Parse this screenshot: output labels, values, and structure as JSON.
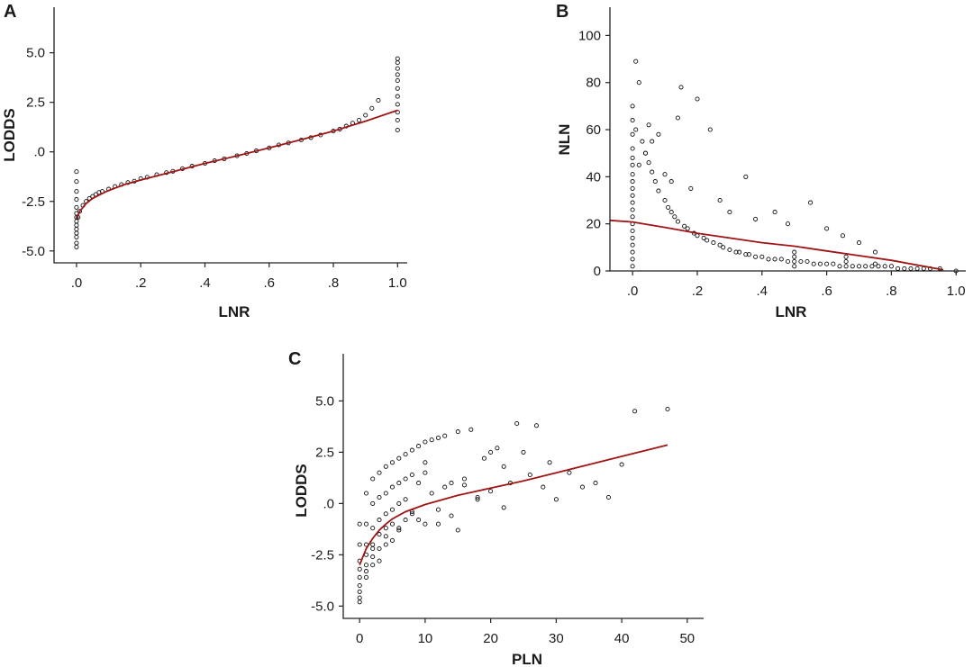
{
  "figure": {
    "line_color": "#a01414",
    "point_color": "#111111",
    "point_style": "open-circle"
  },
  "chart_data": [
    {
      "panel": "A",
      "type": "scatter",
      "title": "",
      "xlabel": "LNR",
      "ylabel": "LODDS",
      "xlim": [
        -0.07,
        1.03
      ],
      "ylim": [
        -5.6,
        7.3
      ],
      "xticks": [
        0,
        0.2,
        0.4,
        0.6,
        0.8,
        1.0
      ],
      "xtick_labels": [
        ".0",
        ".2",
        ".4",
        ".6",
        ".8",
        "1.0"
      ],
      "yticks": [
        -5,
        -2.5,
        0,
        2.5,
        5
      ],
      "ytick_labels": [
        "-5.0",
        "-2.5",
        ".0",
        "2.5",
        "5.0"
      ],
      "grid": false,
      "fit_line": {
        "type": "loess",
        "x": [
          0.0,
          0.01,
          0.03,
          0.05,
          0.08,
          0.1,
          0.15,
          0.2,
          0.3,
          0.4,
          0.5,
          0.6,
          0.7,
          0.8,
          0.9,
          1.0
        ],
        "y": [
          -3.35,
          -3.0,
          -2.6,
          -2.35,
          -2.1,
          -1.95,
          -1.65,
          -1.42,
          -1.0,
          -0.58,
          -0.2,
          0.2,
          0.62,
          1.05,
          1.55,
          2.1
        ]
      },
      "points": {
        "x": [
          0.0,
          0.0,
          0.0,
          0.0,
          0.0,
          0.0,
          0.0,
          0.0,
          0.0,
          0.0,
          0.0,
          0.0,
          0.0,
          0.0,
          0.005,
          0.01,
          0.02,
          0.03,
          0.04,
          0.05,
          0.06,
          0.07,
          0.08,
          0.1,
          0.12,
          0.14,
          0.16,
          0.18,
          0.2,
          0.22,
          0.25,
          0.28,
          0.3,
          0.33,
          0.36,
          0.4,
          0.43,
          0.46,
          0.5,
          0.53,
          0.56,
          0.6,
          0.63,
          0.66,
          0.7,
          0.73,
          0.76,
          0.8,
          0.82,
          0.84,
          0.86,
          0.88,
          0.9,
          0.92,
          0.94,
          1.0,
          1.0,
          1.0,
          1.0,
          1.0,
          1.0,
          1.0,
          1.0,
          1.0,
          1.0,
          1.0
        ],
        "y": [
          -1.0,
          -1.5,
          -2.0,
          -2.4,
          -2.8,
          -3.1,
          -3.3,
          -3.5,
          -3.7,
          -3.9,
          -4.1,
          -4.3,
          -4.6,
          -4.8,
          -3.3,
          -3.0,
          -2.7,
          -2.5,
          -2.35,
          -2.25,
          -2.15,
          -2.05,
          -2.0,
          -1.88,
          -1.75,
          -1.65,
          -1.55,
          -1.48,
          -1.35,
          -1.28,
          -1.15,
          -1.05,
          -0.98,
          -0.85,
          -0.72,
          -0.58,
          -0.45,
          -0.35,
          -0.2,
          -0.08,
          0.05,
          0.2,
          0.35,
          0.45,
          0.6,
          0.72,
          0.85,
          1.05,
          1.15,
          1.3,
          1.45,
          1.6,
          1.85,
          2.2,
          2.6,
          1.1,
          1.6,
          2.0,
          2.4,
          2.8,
          3.2,
          3.6,
          3.9,
          4.2,
          4.5,
          4.7
        ]
      }
    },
    {
      "panel": "B",
      "type": "scatter",
      "title": "",
      "xlabel": "LNR",
      "ylabel": "NLN",
      "xlim": [
        -0.07,
        1.03
      ],
      "ylim": [
        0,
        112
      ],
      "xticks": [
        0,
        0.2,
        0.4,
        0.6,
        0.8,
        1.0
      ],
      "xtick_labels": [
        ".0",
        ".2",
        ".4",
        ".6",
        ".8",
        "1.0"
      ],
      "yticks": [
        0,
        20,
        40,
        60,
        80,
        100
      ],
      "ytick_labels": [
        "0",
        "20",
        "40",
        "60",
        "80",
        "100"
      ],
      "grid": false,
      "fit_line": {
        "type": "loess",
        "x": [
          -0.07,
          0.0,
          0.1,
          0.2,
          0.3,
          0.4,
          0.5,
          0.6,
          0.7,
          0.8,
          0.9,
          0.96
        ],
        "y": [
          21.5,
          20.8,
          18.5,
          16.0,
          14.0,
          12.0,
          10.5,
          8.5,
          6.5,
          4.5,
          2.0,
          0.5
        ]
      },
      "points": {
        "x": [
          0.0,
          0.0,
          0.0,
          0.0,
          0.0,
          0.0,
          0.0,
          0.0,
          0.0,
          0.0,
          0.0,
          0.0,
          0.0,
          0.0,
          0.0,
          0.0,
          0.0,
          0.0,
          0.0,
          0.0,
          0.01,
          0.02,
          0.03,
          0.04,
          0.05,
          0.06,
          0.07,
          0.08,
          0.1,
          0.11,
          0.12,
          0.13,
          0.14,
          0.16,
          0.17,
          0.19,
          0.2,
          0.22,
          0.23,
          0.25,
          0.27,
          0.28,
          0.3,
          0.32,
          0.33,
          0.35,
          0.36,
          0.38,
          0.4,
          0.42,
          0.44,
          0.46,
          0.48,
          0.5,
          0.5,
          0.5,
          0.5,
          0.52,
          0.54,
          0.56,
          0.58,
          0.6,
          0.62,
          0.64,
          0.66,
          0.66,
          0.66,
          0.68,
          0.7,
          0.72,
          0.74,
          0.75,
          0.76,
          0.78,
          0.8,
          0.82,
          0.84,
          0.86,
          0.88,
          0.9,
          0.92,
          0.95,
          1.0,
          0.01,
          0.02,
          0.04,
          0.05,
          0.06,
          0.08,
          0.1,
          0.12,
          0.14,
          0.15,
          0.18,
          0.2,
          0.24,
          0.27,
          0.3,
          0.35,
          0.38,
          0.44,
          0.48,
          0.55,
          0.6,
          0.65,
          0.7,
          0.75
        ],
        "y": [
          2,
          5,
          8,
          11,
          14,
          17,
          20,
          23,
          26,
          29,
          32,
          35,
          38,
          41,
          45,
          48,
          52,
          58,
          64,
          70,
          89,
          80,
          55,
          50,
          46,
          42,
          38,
          34,
          30,
          27,
          25,
          23,
          21,
          19,
          18,
          16,
          15,
          14,
          13,
          12,
          11,
          10,
          9,
          8,
          8,
          7,
          7,
          6,
          6,
          5,
          5,
          5,
          4,
          2,
          4,
          6,
          8,
          4,
          4,
          3,
          3,
          3,
          3,
          2,
          2,
          4,
          6,
          2,
          2,
          2,
          2,
          3,
          2,
          2,
          2,
          1,
          1,
          1,
          1,
          1,
          1,
          1,
          0,
          60,
          45,
          50,
          62,
          55,
          58,
          41,
          38,
          65,
          78,
          35,
          73,
          60,
          30,
          25,
          40,
          22,
          25,
          20,
          29,
          18,
          15,
          12,
          8
        ]
      }
    },
    {
      "panel": "C",
      "type": "scatter",
      "title": "",
      "xlabel": "PLN",
      "ylabel": "LODDS",
      "xlim": [
        -2.5,
        52.5
      ],
      "ylim": [
        -5.6,
        7.3
      ],
      "xticks": [
        0,
        10,
        20,
        30,
        40,
        50
      ],
      "xtick_labels": [
        "0",
        "10",
        "20",
        "30",
        "40",
        "50"
      ],
      "yticks": [
        -5,
        -2.5,
        0,
        2.5,
        5
      ],
      "ytick_labels": [
        "-5.0",
        "-2.5",
        ".0",
        "2.5",
        "5.0"
      ],
      "grid": false,
      "fit_line": {
        "type": "loess",
        "x": [
          0,
          0.5,
          1,
          2,
          3,
          4,
          5,
          7,
          10,
          15,
          20,
          25,
          30,
          35,
          40,
          47
        ],
        "y": [
          -3.0,
          -2.6,
          -2.2,
          -1.7,
          -1.3,
          -1.0,
          -0.75,
          -0.4,
          -0.05,
          0.4,
          0.75,
          1.1,
          1.5,
          1.9,
          2.3,
          2.85
        ]
      },
      "points": {
        "x": [
          0,
          0,
          0,
          0,
          0,
          0,
          0,
          0,
          0,
          1,
          1,
          1,
          1,
          1,
          1,
          1,
          2,
          2,
          2,
          2,
          2,
          2,
          3,
          3,
          3,
          3,
          3,
          3,
          4,
          4,
          4,
          4,
          4,
          5,
          5,
          5,
          5,
          5,
          6,
          6,
          6,
          6,
          7,
          7,
          7,
          7,
          8,
          8,
          8,
          9,
          9,
          9,
          10,
          10,
          10,
          11,
          11,
          12,
          12,
          13,
          13,
          14,
          15,
          15,
          16,
          17,
          18,
          19,
          20,
          21,
          22,
          23,
          24,
          25,
          26,
          27,
          28,
          29,
          30,
          32,
          34,
          36,
          38,
          40,
          42,
          47,
          2,
          4,
          6,
          8,
          10,
          12,
          14,
          16,
          18,
          20,
          22
        ],
        "y": [
          -1.0,
          -2.0,
          -2.8,
          -3.2,
          -3.6,
          -4.0,
          -4.3,
          -4.6,
          -4.8,
          0.5,
          -1.0,
          -2.0,
          -2.5,
          -3.0,
          -3.3,
          -3.6,
          1.2,
          0.0,
          -1.2,
          -2.0,
          -2.6,
          -3.0,
          1.5,
          0.3,
          -0.8,
          -1.5,
          -2.2,
          -2.8,
          1.8,
          0.5,
          -0.5,
          -1.2,
          -2.0,
          2.0,
          0.8,
          -0.3,
          -1.0,
          -1.8,
          2.2,
          1.0,
          0.0,
          -1.2,
          2.4,
          1.2,
          0.2,
          -0.8,
          2.6,
          1.4,
          -0.5,
          2.8,
          1.0,
          -0.8,
          3.0,
          1.5,
          -1.0,
          3.1,
          0.5,
          3.2,
          -0.3,
          3.3,
          0.8,
          1.0,
          3.5,
          -1.3,
          1.2,
          3.6,
          0.3,
          2.2,
          0.6,
          2.7,
          -0.2,
          1.0,
          3.9,
          2.5,
          1.4,
          3.8,
          0.8,
          2.0,
          0.2,
          1.5,
          0.8,
          1.0,
          0.3,
          1.9,
          4.5,
          4.6,
          -2.2,
          -1.6,
          -1.3,
          -0.4,
          2.0,
          -1.0,
          -0.6,
          0.9,
          0.2,
          2.5,
          1.8
        ]
      }
    }
  ],
  "labels": {
    "panel_a": "A",
    "panel_b": "B",
    "panel_c": "C"
  }
}
